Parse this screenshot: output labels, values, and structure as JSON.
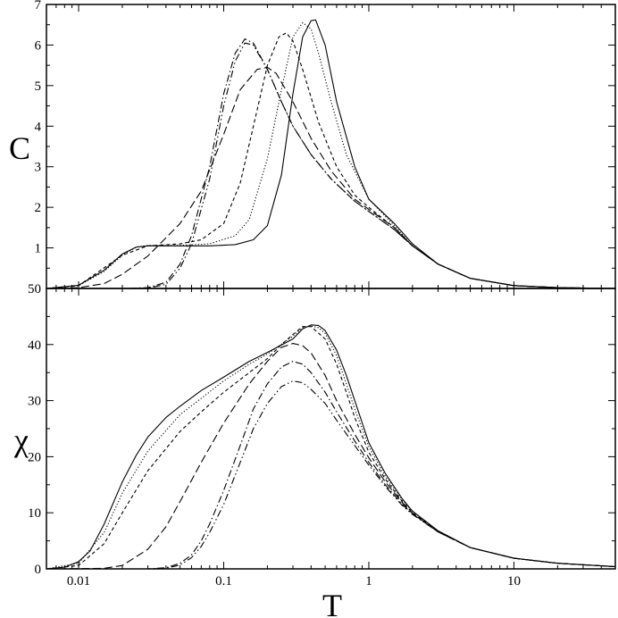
{
  "chart_data": {
    "type": "line",
    "x_scale": "log",
    "xlim": [
      0.006,
      50
    ],
    "xlabel": "T",
    "x_tick_labels": [
      "0.01",
      "0.1",
      "1",
      "10"
    ],
    "x_tick_values": [
      0.01,
      0.1,
      1,
      10
    ],
    "panels": [
      {
        "ylabel": "C",
        "ylim": [
          0,
          7
        ],
        "y_tick_labels": [
          "1",
          "2",
          "3",
          "4",
          "5",
          "6",
          "7"
        ],
        "y_tick_values": [
          1,
          2,
          3,
          4,
          5,
          6,
          7
        ],
        "series": [
          {
            "style": "solid",
            "color": "#000000",
            "x": [
              0.006,
              0.01,
              0.015,
              0.02,
              0.025,
              0.03,
              0.05,
              0.08,
              0.12,
              0.16,
              0.2,
              0.25,
              0.3,
              0.35,
              0.4,
              0.43,
              0.5,
              0.6,
              0.8,
              1,
              1.5,
              2,
              3,
              5,
              10,
              20,
              50
            ],
            "y": [
              0,
              0.08,
              0.45,
              0.85,
              1.02,
              1.05,
              1.05,
              1.05,
              1.08,
              1.2,
              1.55,
              2.8,
              4.8,
              6.2,
              6.6,
              6.62,
              6.0,
              4.6,
              3.0,
              2.2,
              1.6,
              1.1,
              0.6,
              0.25,
              0.07,
              0.02,
              0
            ]
          },
          {
            "style": "dotted",
            "color": "#000000",
            "x": [
              0.006,
              0.01,
              0.015,
              0.02,
              0.025,
              0.03,
              0.05,
              0.08,
              0.12,
              0.15,
              0.2,
              0.25,
              0.3,
              0.35,
              0.4,
              0.45,
              0.55,
              0.7,
              1,
              1.5,
              2,
              3,
              5,
              10,
              20,
              50
            ],
            "y": [
              0,
              0.07,
              0.42,
              0.82,
              1.02,
              1.06,
              1.06,
              1.1,
              1.3,
              1.7,
              3.2,
              4.9,
              6.2,
              6.55,
              6.4,
              5.8,
              4.6,
              3.3,
              2.2,
              1.55,
              1.05,
              0.6,
              0.25,
              0.07,
              0.02,
              0
            ]
          },
          {
            "style": "dashed-short",
            "color": "#000000",
            "x": [
              0.006,
              0.01,
              0.02,
              0.03,
              0.05,
              0.07,
              0.1,
              0.13,
              0.17,
              0.2,
              0.24,
              0.27,
              0.3,
              0.35,
              0.45,
              0.6,
              0.8,
              1,
              1.5,
              2,
              3,
              5,
              10,
              20,
              50
            ],
            "y": [
              0,
              0.07,
              0.82,
              1.05,
              1.1,
              1.2,
              1.6,
              2.6,
              4.4,
              5.5,
              6.2,
              6.3,
              6.1,
              5.4,
              4.1,
              3.0,
              2.3,
              2.0,
              1.5,
              1.05,
              0.6,
              0.25,
              0.07,
              0.02,
              0
            ]
          },
          {
            "style": "dashed-long",
            "color": "#000000",
            "x": [
              0.006,
              0.01,
              0.015,
              0.02,
              0.03,
              0.05,
              0.07,
              0.1,
              0.13,
              0.17,
              0.2,
              0.23,
              0.3,
              0.4,
              0.55,
              0.8,
              1,
              1.5,
              2,
              3,
              5,
              10,
              20,
              50
            ],
            "y": [
              0,
              0.02,
              0.12,
              0.35,
              0.8,
              1.6,
              2.4,
              3.8,
              4.9,
              5.4,
              5.45,
              5.3,
              4.6,
              3.7,
              2.9,
              2.2,
              1.95,
              1.5,
              1.05,
              0.6,
              0.25,
              0.07,
              0.02,
              0
            ]
          },
          {
            "style": "dash-dot",
            "color": "#000000",
            "x": [
              0.006,
              0.02,
              0.03,
              0.04,
              0.05,
              0.06,
              0.08,
              0.1,
              0.12,
              0.14,
              0.16,
              0.2,
              0.25,
              0.3,
              0.4,
              0.55,
              0.8,
              1,
              1.5,
              2,
              3,
              5,
              10,
              20,
              50
            ],
            "y": [
              0,
              0,
              0.02,
              0.15,
              0.6,
              1.3,
              3.0,
              4.8,
              5.8,
              6.15,
              6.05,
              5.4,
              4.6,
              4.0,
              3.3,
              2.7,
              2.15,
              1.9,
              1.45,
              1.05,
              0.6,
              0.25,
              0.07,
              0.02,
              0
            ]
          },
          {
            "style": "dash-dot-dot",
            "color": "#000000",
            "x": [
              0.006,
              0.02,
              0.03,
              0.04,
              0.05,
              0.06,
              0.08,
              0.1,
              0.12,
              0.14,
              0.16,
              0.2,
              0.25,
              0.3,
              0.4,
              0.55,
              0.8,
              1,
              1.5,
              2,
              3,
              5,
              10,
              20,
              50
            ],
            "y": [
              0,
              0,
              0.01,
              0.1,
              0.5,
              1.1,
              2.7,
              4.5,
              5.6,
              6.05,
              6.0,
              5.4,
              4.6,
              4.0,
              3.3,
              2.7,
              2.15,
              1.9,
              1.45,
              1.05,
              0.6,
              0.25,
              0.07,
              0.02,
              0
            ]
          }
        ]
      },
      {
        "ylabel": "χ",
        "ylim": [
          0,
          50
        ],
        "y_tick_labels": [
          "0",
          "10",
          "20",
          "30",
          "40",
          "50"
        ],
        "y_tick_values": [
          0,
          10,
          20,
          30,
          40,
          50
        ],
        "series": [
          {
            "style": "solid",
            "color": "#000000",
            "x": [
              0.006,
              0.008,
              0.01,
              0.012,
              0.015,
              0.02,
              0.025,
              0.03,
              0.04,
              0.05,
              0.07,
              0.1,
              0.15,
              0.2,
              0.3,
              0.35,
              0.4,
              0.45,
              0.5,
              0.6,
              0.7,
              0.8,
              1,
              1.3,
              1.7,
              2,
              3,
              5,
              10,
              20,
              50
            ],
            "y": [
              0,
              0.3,
              1.3,
              3.2,
              8,
              15.5,
              20.3,
              23.5,
              27,
              29,
              31.8,
              34.2,
              37,
              38.6,
              41,
              42.8,
              43.5,
              43.4,
              42.5,
              39,
              34.5,
              30,
              22.5,
              17,
              12.5,
              10.3,
              6.8,
              3.8,
              1.9,
              1,
              0.4
            ]
          },
          {
            "style": "dotted",
            "color": "#000000",
            "x": [
              0.006,
              0.01,
              0.015,
              0.02,
              0.03,
              0.05,
              0.1,
              0.15,
              0.2,
              0.3,
              0.35,
              0.4,
              0.45,
              0.5,
              0.6,
              0.7,
              0.8,
              1,
              1.3,
              1.7,
              2,
              3,
              5,
              10,
              20,
              50
            ],
            "y": [
              0,
              1,
              6.5,
              13.5,
              21,
              27.5,
              33.5,
              36.5,
              38.3,
              41.5,
              43,
              43.3,
              43,
              42,
              38,
              33,
              28.5,
              21.8,
              16.5,
              12.3,
              10.2,
              6.8,
              3.8,
              1.9,
              1,
              0.4
            ]
          },
          {
            "style": "dashed-short",
            "color": "#000000",
            "x": [
              0.006,
              0.01,
              0.015,
              0.02,
              0.03,
              0.05,
              0.07,
              0.1,
              0.15,
              0.2,
              0.25,
              0.3,
              0.35,
              0.4,
              0.5,
              0.6,
              0.7,
              0.8,
              1,
              1.3,
              1.7,
              2,
              3,
              5,
              10,
              20,
              50
            ],
            "y": [
              0,
              0.6,
              4.5,
              10,
              17.5,
              24.5,
              28,
              31.5,
              35,
              37.5,
              40,
              41.8,
              43.2,
              43.2,
              41,
              36.5,
              31.5,
              27,
              20.8,
              16,
              12,
              10,
              6.7,
              3.8,
              1.9,
              1,
              0.4
            ]
          },
          {
            "style": "dashed-long",
            "color": "#000000",
            "x": [
              0.006,
              0.015,
              0.02,
              0.03,
              0.04,
              0.05,
              0.07,
              0.1,
              0.15,
              0.2,
              0.25,
              0.3,
              0.35,
              0.4,
              0.5,
              0.6,
              0.8,
              1,
              1.3,
              1.7,
              2,
              3,
              5,
              10,
              20,
              50
            ],
            "y": [
              0,
              0.1,
              0.6,
              3.5,
              7.5,
              12,
              19,
              26,
              33,
              37,
              39.5,
              40.2,
              39.8,
              38.5,
              34.5,
              30,
              24,
              19.8,
              15.5,
              11.8,
              9.9,
              6.6,
              3.8,
              1.9,
              1,
              0.4
            ]
          },
          {
            "style": "dash-dot",
            "color": "#000000",
            "x": [
              0.006,
              0.03,
              0.04,
              0.05,
              0.06,
              0.07,
              0.08,
              0.1,
              0.13,
              0.16,
              0.2,
              0.25,
              0.3,
              0.35,
              0.4,
              0.5,
              0.6,
              0.8,
              1,
              1.3,
              1.7,
              2,
              3,
              5,
              10,
              20,
              50
            ],
            "y": [
              0,
              0,
              0.2,
              1,
              2.5,
              5,
              8,
              14,
              22,
              28.5,
              33,
              36,
              37,
              36.5,
              35,
              31.5,
              28,
              22.8,
              19,
              15,
              11.5,
              9.8,
              6.6,
              3.8,
              1.9,
              1,
              0.4
            ]
          },
          {
            "style": "dash-dot-dot",
            "color": "#000000",
            "x": [
              0.006,
              0.03,
              0.04,
              0.05,
              0.06,
              0.07,
              0.08,
              0.1,
              0.13,
              0.16,
              0.2,
              0.25,
              0.3,
              0.35,
              0.4,
              0.5,
              0.6,
              0.8,
              1,
              1.3,
              1.7,
              2,
              3,
              5,
              10,
              20,
              50
            ],
            "y": [
              0,
              0,
              0.1,
              0.7,
              2,
              4,
              6.5,
              11.5,
              19,
              25,
              29.5,
              32.5,
              33.5,
              33.2,
              32,
              29.5,
              26.5,
              22,
              18.5,
              14.7,
              11.3,
              9.7,
              6.6,
              3.8,
              1.9,
              1,
              0.4
            ]
          }
        ]
      }
    ]
  }
}
